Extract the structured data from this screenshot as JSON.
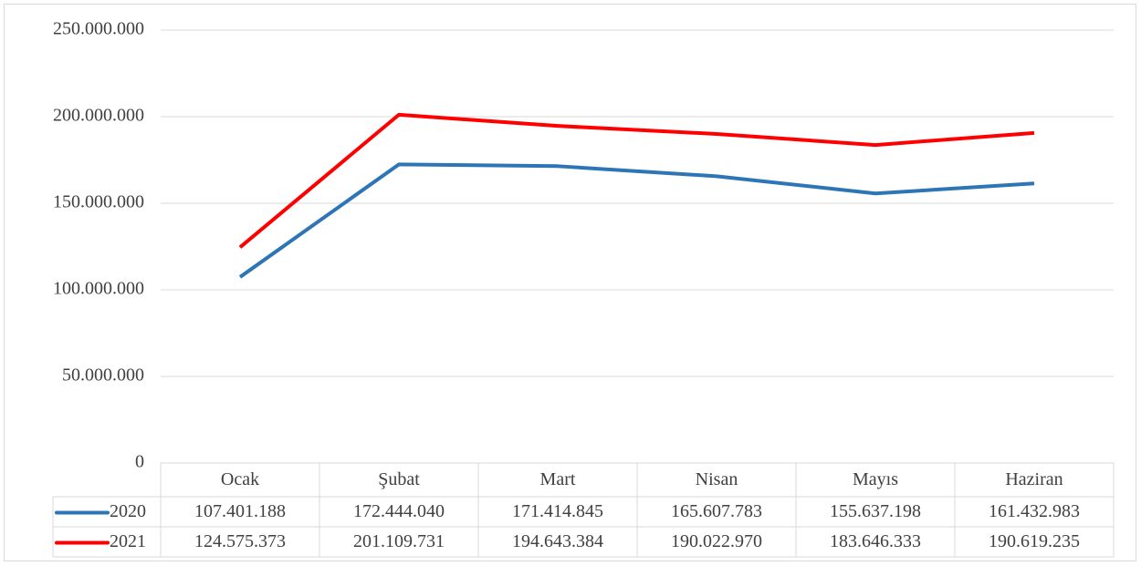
{
  "chart_data": {
    "type": "line",
    "categories": [
      "Ocak",
      "Şubat",
      "Mart",
      "Nisan",
      "Mayıs",
      "Haziran"
    ],
    "series": [
      {
        "name": "2020",
        "color": "#2e75b6",
        "values": [
          107401188,
          172444040,
          171414845,
          165607783,
          155637198,
          161432983
        ],
        "value_labels": [
          "107.401.188",
          "172.444.040",
          "171.414.845",
          "165.607.783",
          "155.637.198",
          "161.432.983"
        ]
      },
      {
        "name": "2021",
        "color": "#ff0000",
        "values": [
          124575373,
          201109731,
          194643384,
          190022970,
          183646333,
          190619235
        ],
        "value_labels": [
          "124.575.373",
          "201.109.731",
          "194.643.384",
          "190.022.970",
          "183.646.333",
          "190.619.235"
        ]
      }
    ],
    "ylim": [
      0,
      250000000
    ],
    "yticks": [
      0,
      {
        "value": 50000000,
        "label": "50.000.000"
      },
      {
        "value": 100000000,
        "label": "100.000.000"
      },
      {
        "value": 150000000,
        "label": "150.000.000"
      },
      {
        "value": 200000000,
        "label": "200.000.000"
      },
      {
        "value": 250000000,
        "label": "250.000.000"
      }
    ],
    "grid": true
  }
}
